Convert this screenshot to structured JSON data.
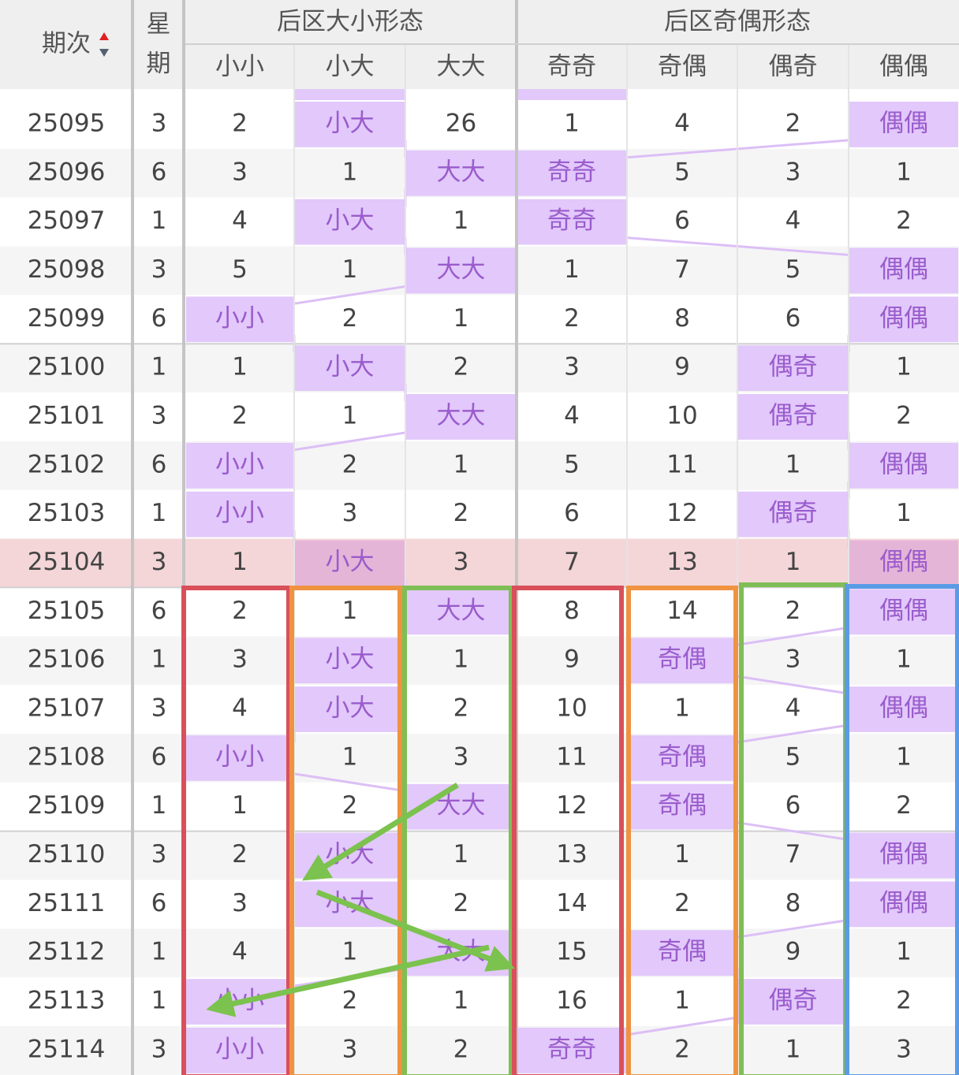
{
  "header": {
    "period": "期次",
    "weekday": "星期",
    "group_size": "后区大小形态",
    "group_parity": "后区奇偶形态",
    "columns": [
      "小小",
      "小大",
      "大大",
      "奇奇",
      "奇偶",
      "偶奇",
      "偶偶"
    ]
  },
  "rows": [
    [
      "25095",
      "3",
      "2",
      "小大",
      "26",
      "1",
      "4",
      "2",
      "偶偶"
    ],
    [
      "25096",
      "6",
      "3",
      "1",
      "大大",
      "奇奇",
      "5",
      "3",
      "1"
    ],
    [
      "25097",
      "1",
      "4",
      "小大",
      "1",
      "奇奇",
      "6",
      "4",
      "2"
    ],
    [
      "25098",
      "3",
      "5",
      "1",
      "大大",
      "1",
      "7",
      "5",
      "偶偶"
    ],
    [
      "25099",
      "6",
      "小小",
      "2",
      "1",
      "2",
      "8",
      "6",
      "偶偶"
    ],
    [
      "25100",
      "1",
      "1",
      "小大",
      "2",
      "3",
      "9",
      "偶奇",
      "1"
    ],
    [
      "25101",
      "3",
      "2",
      "1",
      "大大",
      "4",
      "10",
      "偶奇",
      "2"
    ],
    [
      "25102",
      "6",
      "小小",
      "2",
      "1",
      "5",
      "11",
      "1",
      "偶偶"
    ],
    [
      "25103",
      "1",
      "小小",
      "3",
      "2",
      "6",
      "12",
      "偶奇",
      "1"
    ],
    [
      "25104",
      "3",
      "1",
      "小大",
      "3",
      "7",
      "13",
      "1",
      "偶偶"
    ],
    [
      "25105",
      "6",
      "2",
      "1",
      "大大",
      "8",
      "14",
      "2",
      "偶偶"
    ],
    [
      "25106",
      "1",
      "3",
      "小大",
      "1",
      "9",
      "奇偶",
      "3",
      "1"
    ],
    [
      "25107",
      "3",
      "4",
      "小大",
      "2",
      "10",
      "1",
      "4",
      "偶偶"
    ],
    [
      "25108",
      "6",
      "小小",
      "1",
      "3",
      "11",
      "奇偶",
      "5",
      "1"
    ],
    [
      "25109",
      "1",
      "1",
      "2",
      "大大",
      "12",
      "奇偶",
      "6",
      "2"
    ],
    [
      "25110",
      "3",
      "2",
      "小大",
      "1",
      "13",
      "1",
      "7",
      "偶偶"
    ],
    [
      "25111",
      "6",
      "3",
      "小大",
      "2",
      "14",
      "2",
      "8",
      "偶偶"
    ],
    [
      "25112",
      "1",
      "4",
      "1",
      "大大",
      "15",
      "奇偶",
      "9",
      "1"
    ],
    [
      "25113",
      "1",
      "小小",
      "2",
      "1",
      "16",
      "1",
      "偶奇",
      "2"
    ],
    [
      "25114",
      "3",
      "小小",
      "3",
      "2",
      "奇奇",
      "2",
      "1",
      "3"
    ]
  ]
}
